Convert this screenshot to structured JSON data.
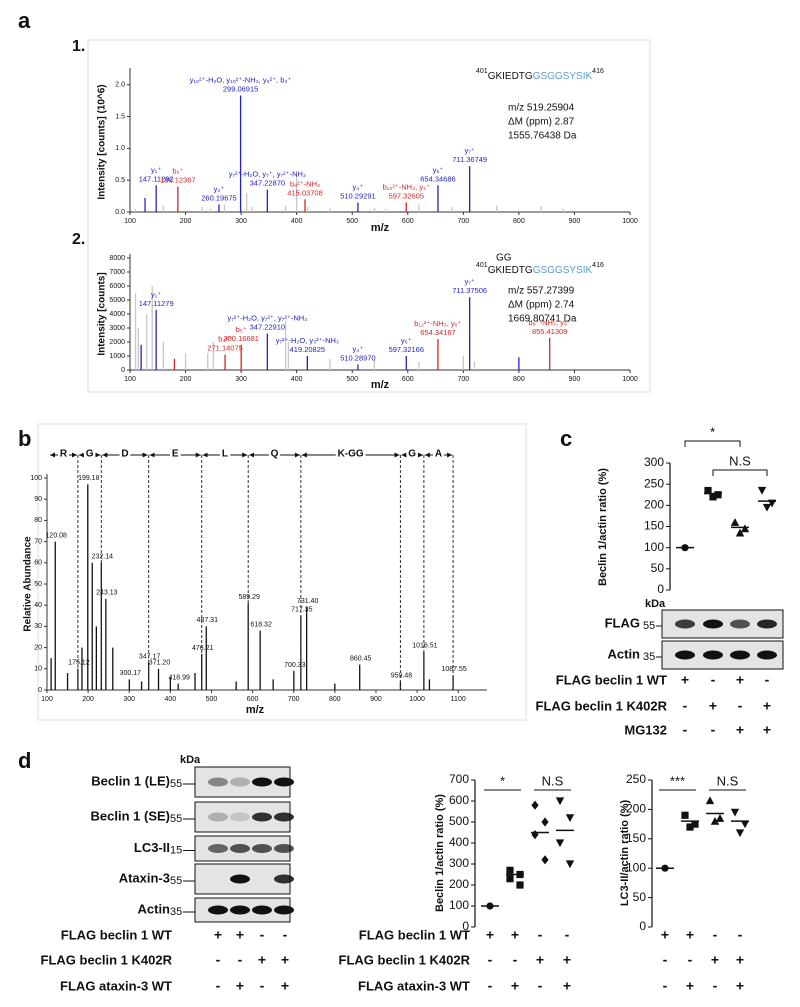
{
  "panels": [
    "a",
    "b",
    "c",
    "d"
  ],
  "chart_data": [
    {
      "type": "spectrum",
      "title": "1.",
      "xlabel": "m/z",
      "ylabel": "Intensity [counts] (10^6)",
      "xlim": [
        100,
        1000
      ],
      "xticks": [
        100,
        200,
        300,
        400,
        500,
        600,
        700,
        800,
        900,
        1000
      ],
      "ylim": [
        0,
        2.2
      ],
      "yticks": [
        {
          "value": 0,
          "label": "0.0"
        },
        0.5,
        {
          "value": 1,
          "label": "1.0"
        },
        1.5,
        {
          "value": 2,
          "label": "2.0"
        }
      ],
      "peptide": {
        "start": 401,
        "seq": "GKIEDTG",
        "seq_mod": "GSGGSYSIK",
        "end": 416
      },
      "info": [
        "m/z 519.25904",
        "ΔM (ppm) 2.87",
        "1555.76438 Da"
      ],
      "series": [
        {
          "color": "#c8c8c8",
          "x": [
            110,
            160,
            230,
            245,
            270,
            310,
            320,
            380,
            400,
            420,
            460,
            540,
            560,
            620,
            680,
            760,
            840,
            880
          ],
          "values": [
            0.05,
            0.1,
            0.08,
            0.05,
            0.12,
            0.3,
            0.08,
            0.1,
            0.6,
            0.08,
            0.06,
            0.07,
            0.05,
            0.12,
            0.08,
            0.1,
            0.09,
            0.05
          ]
        },
        {
          "color": "#2222cc",
          "x": [
            127.1,
            147.11292,
            260.19675,
            299.06915,
            347.2287,
            510.29291,
            654.34686,
            711.36749
          ],
          "values": [
            0.22,
            0.42,
            0.12,
            1.83,
            0.35,
            0.15,
            0.42,
            0.72
          ],
          "peak_labels": [
            null,
            [
              "y₁⁺",
              "147.11292"
            ],
            [
              "y₂⁺",
              "260.19675"
            ],
            [
              "y₁₀²⁺-H₂O, y₁₀²⁺-NH₃, y₅²⁺, b₃⁺",
              "299.06915"
            ],
            [
              "y₇²⁺-H₂O, y₇⁺, y₇²⁺-NH₃",
              "347.22870"
            ],
            [
              "y₄⁺",
              "510.29291"
            ],
            [
              "y₆⁺",
              "654.34686"
            ],
            [
              "y₇⁺",
              "711.36749"
            ]
          ]
        },
        {
          "color": "#dd2222",
          "x": [
            186.12367,
            415.03708,
            597.32605
          ],
          "values": [
            0.4,
            0.2,
            0.15
          ],
          "peak_labels": [
            [
              "b₂⁺",
              "186.12367"
            ],
            [
              "b₈²⁺-NH₃",
              "415.03708"
            ],
            [
              "b₁₀²⁺-NH₃, y₅⁺",
              "597.32605"
            ]
          ]
        }
      ]
    },
    {
      "type": "spectrum",
      "title": "2.",
      "xlabel": "m/z",
      "ylabel": "Intensity [counts]",
      "xlim": [
        100,
        1000
      ],
      "xticks": [
        100,
        200,
        300,
        400,
        500,
        600,
        700,
        800,
        900,
        1000
      ],
      "ylim": [
        0,
        8000
      ],
      "yticks": [
        0,
        1000,
        2000,
        3000,
        4000,
        5000,
        6000,
        7000,
        8000
      ],
      "peptide": {
        "mod": "GG",
        "start": 401,
        "seq": "GKIEDTG",
        "seq_mod": "GSGGSYSIK",
        "end": 416
      },
      "info": [
        "m/z 557.27399",
        "ΔM (ppm) 2.74",
        "1669.80741 Da"
      ],
      "series": [
        {
          "color": "#c8c8c8",
          "x": [
            110,
            115,
            130,
            140,
            160,
            200,
            240,
            250,
            380,
            385,
            460,
            540,
            620,
            700,
            720
          ],
          "values": [
            5500,
            3000,
            4000,
            6000,
            2000,
            1200,
            1200,
            2000,
            3500,
            2000,
            800,
            700,
            600,
            1000,
            600
          ]
        },
        {
          "color": "#2222cc",
          "x": [
            120,
            147.11279,
            347.2291,
            419.20825,
            510.2897,
            597.32166,
            711.37506,
            800
          ],
          "values": [
            1800,
            4300,
            2600,
            1000,
            400,
            1000,
            5200,
            900
          ],
          "peak_labels": [
            null,
            [
              "y₁⁺",
              "147.11279"
            ],
            [
              "y₇²⁺-H₂O, y₇²⁺, y₇²⁺-NH₃",
              "347.22910"
            ],
            [
              "y₇²⁺-H₂O, y₃²⁺-NH₃",
              "419.20825"
            ],
            [
              "y₄⁺",
              "510.28970"
            ],
            [
              "y₅⁺",
              "597.32166"
            ],
            [
              "y₇⁺",
              "711.37506"
            ],
            null
          ]
        },
        {
          "color": "#dd2222",
          "x": [
            180,
            271.14075,
            300.16681,
            654.34167,
            855.41309
          ],
          "values": [
            800,
            1100,
            1800,
            2200,
            2300
          ],
          "peak_labels": [
            null,
            [
              "b₄²⁺",
              "271.14075"
            ],
            [
              "b₅⁺",
              "300.16681"
            ],
            [
              "b₁₂²⁺-NH₃, y₆⁺",
              "654.34167"
            ],
            [
              "b₈⁺-NH₃, y₈⁺",
              "855.41309"
            ]
          ]
        }
      ]
    },
    {
      "type": "spectrum",
      "xlabel": "m/z",
      "ylabel": "Relative Abundance",
      "xlim": [
        100,
        1170
      ],
      "xticks": [
        100,
        200,
        300,
        400,
        500,
        600,
        700,
        800,
        900,
        1000,
        1100
      ],
      "ylim": [
        0,
        100
      ],
      "yticks": [
        0,
        10,
        20,
        30,
        40,
        50,
        60,
        70,
        80,
        90,
        100
      ],
      "residues": [
        "R",
        "G",
        "D",
        "E",
        "L",
        "Q",
        "K-GG",
        "G",
        "A"
      ],
      "residue_edges": [
        105,
        175.12,
        232.14,
        347.17,
        476.21,
        589.29,
        717.35,
        959.48,
        1016.51,
        1087.55
      ],
      "series": [
        {
          "color": "#111111",
          "x": [
            110,
            120.08,
            150,
            175.12,
            185,
            199.18,
            210,
            220,
            232.14,
            243.13,
            260,
            300.17,
            330,
            347.17,
            371.2,
            400,
            418.99,
            460,
            476.21,
            487.31,
            560,
            589.29,
            618.32,
            650,
            700.33,
            717.35,
            731.4,
            800,
            860.45,
            959.48,
            1016.51,
            1030,
            1087.55
          ],
          "values": [
            15,
            70,
            8,
            10,
            20,
            97,
            60,
            30,
            60,
            43,
            20,
            5,
            4,
            13,
            10,
            6,
            3,
            8,
            17,
            30,
            4,
            41,
            28,
            5,
            9,
            35,
            39,
            3,
            12,
            4,
            18,
            5,
            7
          ],
          "peak_labels": [
            null,
            "120.08",
            null,
            "175.12",
            null,
            "199.18",
            null,
            null,
            "232.14",
            "243.13",
            null,
            "300.17",
            null,
            "347.17",
            "371.20",
            null,
            "418.99",
            null,
            "476.21",
            "487.31",
            null,
            "589.29",
            "618.32",
            null,
            "700.33",
            "717.35",
            "731.40",
            null,
            "860.45",
            "959.48",
            "1016.51",
            null,
            "1087.55"
          ]
        }
      ]
    },
    {
      "type": "dot",
      "ylabel": "Beclin 1/actin ratio (%)",
      "ylim": [
        0,
        300
      ],
      "yticks": [
        0,
        50,
        100,
        150,
        200,
        250,
        300
      ],
      "series": [
        {
          "marker": "circle",
          "values": [
            100
          ]
        },
        {
          "marker": "square",
          "values": [
            235,
            225,
            220
          ]
        },
        {
          "marker": "triangle-up",
          "values": [
            160,
            145,
            135
          ]
        },
        {
          "marker": "triangle-down",
          "values": [
            235,
            205,
            195
          ]
        }
      ],
      "means": [
        100,
        228,
        148,
        210
      ],
      "annotations": [
        {
          "text": "*"
        },
        {
          "text": "N.S"
        }
      ]
    },
    {
      "type": "dot",
      "ylabel": "Beclin 1/actin ratio (%)",
      "ylim": [
        0,
        700
      ],
      "yticks": [
        0,
        100,
        200,
        300,
        400,
        500,
        600,
        700
      ],
      "series": [
        {
          "marker": "circle",
          "values": [
            100
          ]
        },
        {
          "marker": "square",
          "values": [
            270,
            250,
            230,
            200
          ]
        },
        {
          "marker": "diamond",
          "values": [
            580,
            500,
            440,
            320
          ]
        },
        {
          "marker": "triangle-down",
          "values": [
            600,
            520,
            400,
            300
          ]
        }
      ],
      "means": [
        100,
        250,
        450,
        460
      ],
      "annotations": [
        {
          "text": "*"
        },
        {
          "text": "N.S"
        }
      ]
    },
    {
      "type": "dot",
      "ylabel": "LC3-II/actin ratio (%)",
      "ylim": [
        0,
        250
      ],
      "yticks": [
        0,
        50,
        100,
        150,
        200,
        250
      ],
      "series": [
        {
          "marker": "circle",
          "values": [
            100
          ]
        },
        {
          "marker": "square",
          "values": [
            190,
            175,
            170
          ]
        },
        {
          "marker": "triangle-up",
          "values": [
            215,
            185,
            180
          ]
        },
        {
          "marker": "triangle-down",
          "values": [
            195,
            175,
            160
          ]
        }
      ],
      "means": [
        100,
        180,
        193,
        180
      ],
      "annotations": [
        {
          "text": "***"
        },
        {
          "text": "N.S"
        }
      ]
    }
  ],
  "blots": {
    "c": {
      "unit": "kDa",
      "rows": [
        {
          "name": "FLAG",
          "marker": 55
        },
        {
          "name": "Actin",
          "marker": 35
        }
      ]
    },
    "d": {
      "unit": "kDa",
      "rows": [
        {
          "name": "Beclin 1 (LE)",
          "marker": 55
        },
        {
          "name": "Beclin 1 (SE)",
          "marker": 55
        },
        {
          "name": "LC3-II",
          "marker": 15
        },
        {
          "name": "Ataxin-3",
          "marker": 55
        },
        {
          "name": "Actin",
          "marker": 35
        }
      ]
    }
  },
  "tables": {
    "c": {
      "rows": [
        {
          "name": "FLAG beclin 1 WT",
          "signs": [
            "+",
            "-",
            "+",
            "-"
          ]
        },
        {
          "name": "FLAG beclin 1 K402R",
          "signs": [
            "-",
            "+",
            "-",
            "+"
          ]
        },
        {
          "name": "MG132",
          "signs": [
            "-",
            "-",
            "+",
            "+"
          ]
        }
      ]
    },
    "d_blot": {
      "rows": [
        {
          "name": "FLAG beclin 1 WT",
          "signs": [
            "+",
            "+",
            "-",
            "-"
          ]
        },
        {
          "name": "FLAG beclin 1 K402R",
          "signs": [
            "-",
            "-",
            "+",
            "+"
          ]
        },
        {
          "name": "FLAG ataxin-3 WT",
          "signs": [
            "-",
            "+",
            "-",
            "+"
          ]
        }
      ]
    },
    "d1": {
      "rows": [
        {
          "name": "FLAG beclin 1 WT",
          "signs": [
            "+",
            "+",
            "-",
            "-"
          ]
        },
        {
          "name": "FLAG beclin 1 K402R",
          "signs": [
            "-",
            "-",
            "+",
            "+"
          ]
        },
        {
          "name": "FLAG ataxin-3 WT",
          "signs": [
            "-",
            "+",
            "-",
            "+"
          ]
        }
      ]
    },
    "d2": {
      "rows": [
        {
          "signs": [
            "+",
            "+",
            "-",
            "-"
          ]
        },
        {
          "signs": [
            "-",
            "-",
            "+",
            "+"
          ]
        },
        {
          "signs": [
            "-",
            "+",
            "-",
            "+"
          ]
        }
      ]
    }
  }
}
